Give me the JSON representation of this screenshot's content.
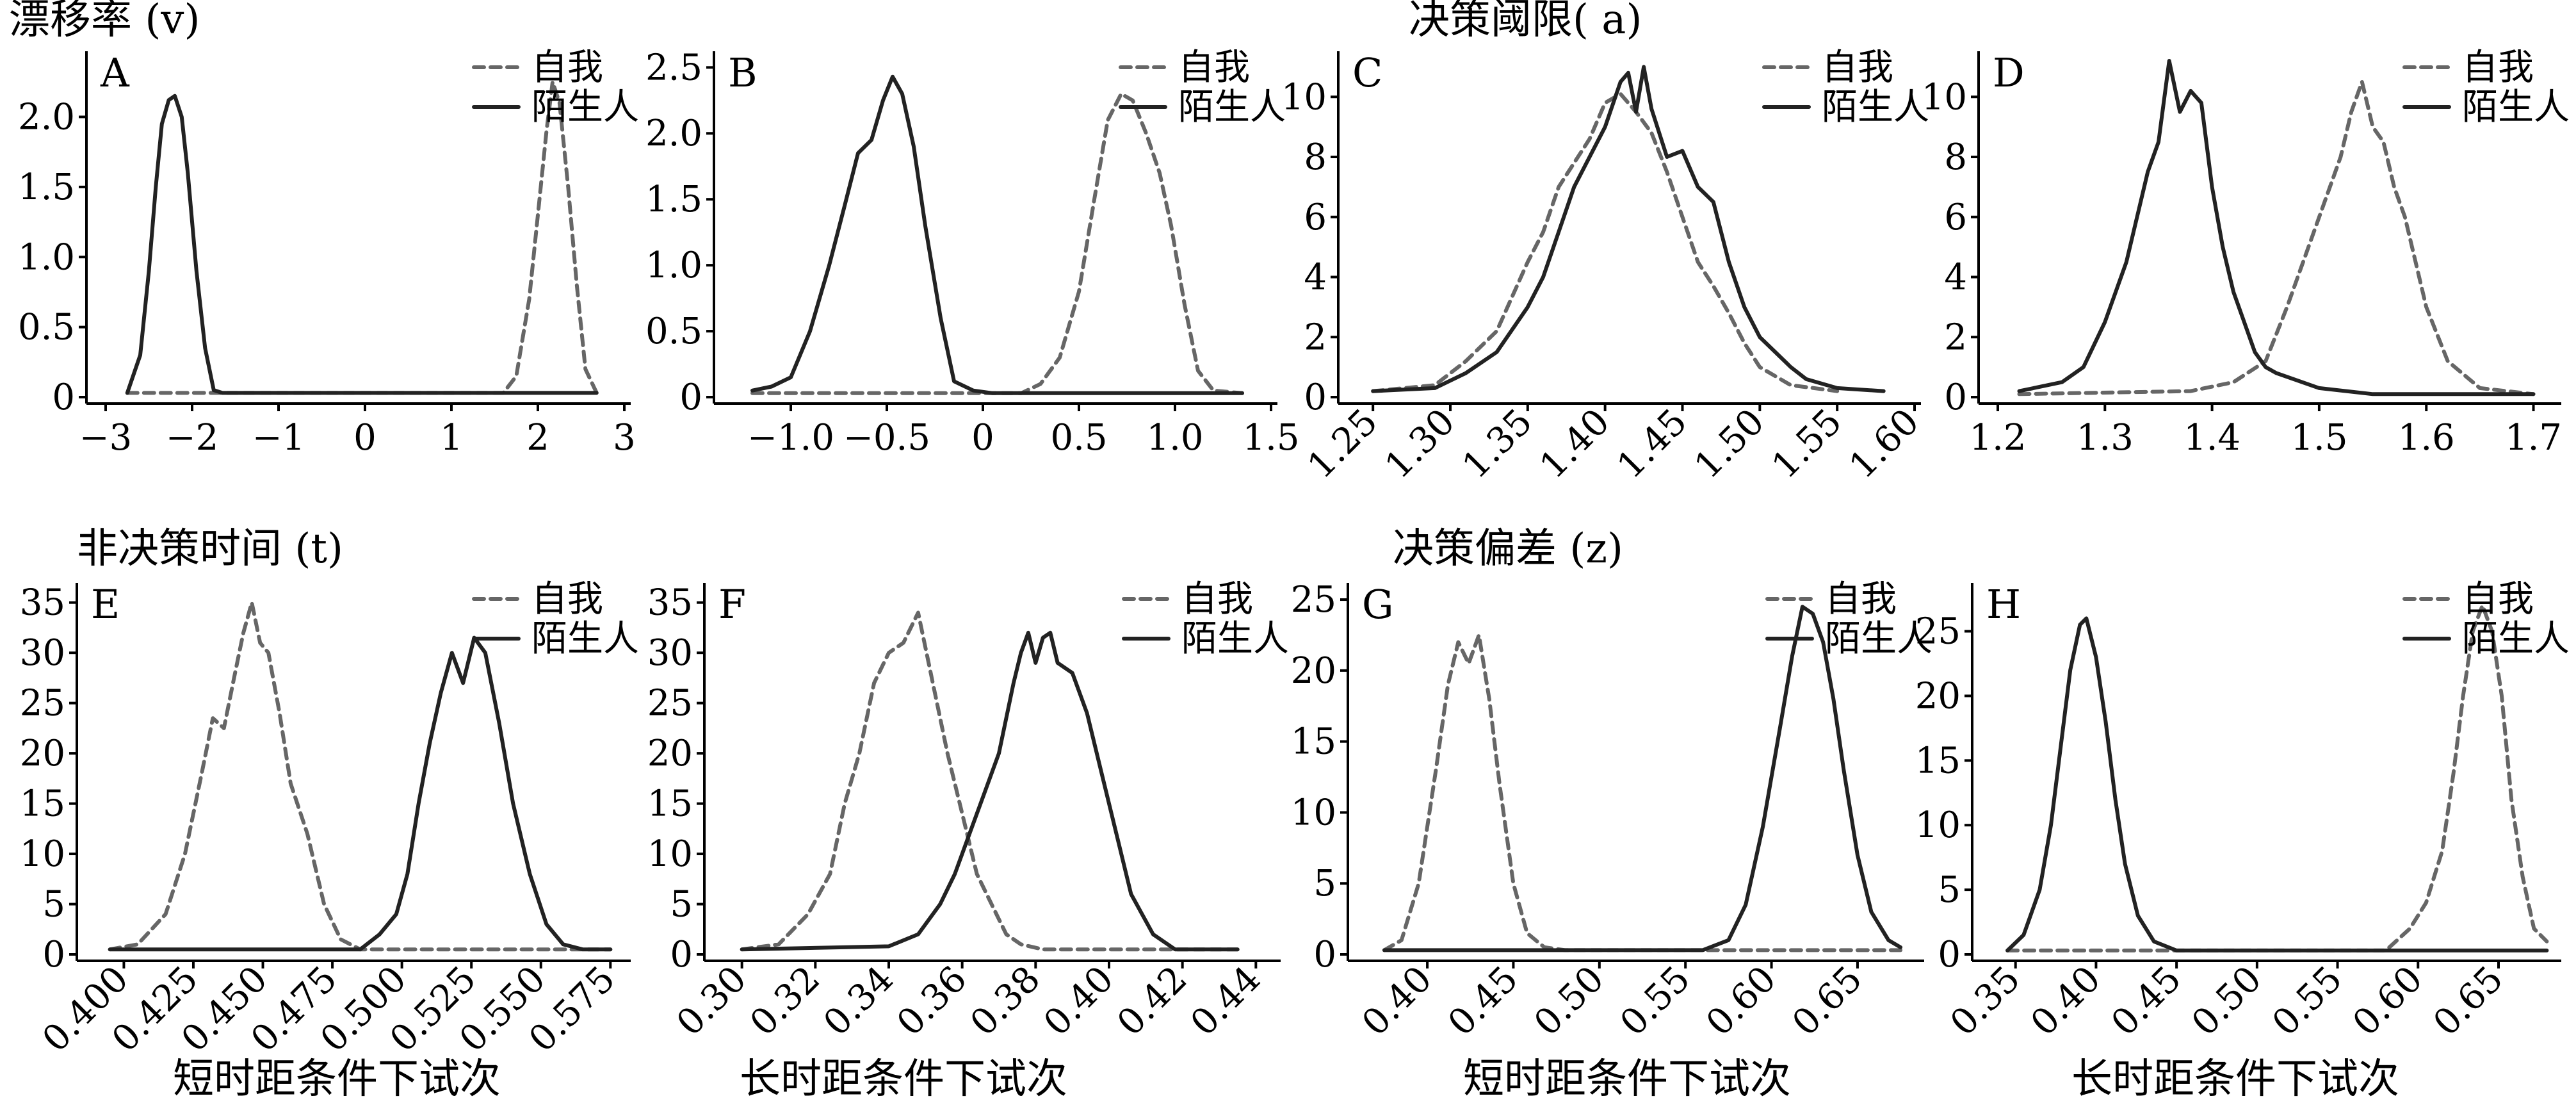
{
  "group_titles": {
    "drift_rate": "漂移率 (v)",
    "threshold": "决策阈限( a)",
    "nondecision": "非决策时间 (t)",
    "bias": "决策偏差 (z)"
  },
  "condition_labels": {
    "short": "短时距条件下试次",
    "long": "长时距条件下试次"
  },
  "legend": {
    "self": "自我",
    "stranger": "陌生人"
  },
  "colors": {
    "self": "#666666",
    "stranger": "#222222"
  },
  "chart_data": [
    {
      "panel": "A",
      "type": "line",
      "xlim": [
        -3,
        3
      ],
      "ylim": [
        0,
        2.4
      ],
      "xticks": [
        -3,
        -2,
        -1,
        0,
        1,
        2,
        3
      ],
      "xtick_labels": [
        "−3",
        "−2",
        "−1",
        "0",
        "1",
        "2",
        "3"
      ],
      "yticks": [
        0,
        0.5,
        1.0,
        1.5,
        2.0
      ],
      "ytick_labels": [
        "0",
        "0.5",
        "1.0",
        "1.5",
        "2.0"
      ],
      "rotate_x": false,
      "series": [
        {
          "name": "自我",
          "style": "dashed",
          "x": [
            -2.75,
            1.6,
            1.75,
            1.9,
            2.0,
            2.1,
            2.17,
            2.25,
            2.35,
            2.45,
            2.55,
            2.68
          ],
          "y": [
            0.03,
            0.03,
            0.15,
            0.7,
            1.3,
            1.9,
            2.25,
            2.1,
            1.5,
            0.8,
            0.2,
            0.03
          ]
        },
        {
          "name": "陌生人",
          "style": "solid",
          "x": [
            -2.75,
            -2.6,
            -2.5,
            -2.42,
            -2.35,
            -2.27,
            -2.2,
            -2.12,
            -2.05,
            -1.95,
            -1.85,
            -1.75,
            -1.65,
            2.68
          ],
          "y": [
            0.03,
            0.3,
            0.9,
            1.5,
            1.95,
            2.12,
            2.15,
            2.0,
            1.6,
            0.9,
            0.35,
            0.05,
            0.03,
            0.03
          ]
        }
      ]
    },
    {
      "panel": "B",
      "type": "line",
      "xlim": [
        -1.3,
        1.5
      ],
      "ylim": [
        0,
        2.55
      ],
      "xticks": [
        -1.0,
        -0.5,
        0,
        0.5,
        1.0,
        1.5
      ],
      "xtick_labels": [
        "−1.0",
        "−0.5",
        "0",
        "0.5",
        "1.0",
        "1.5"
      ],
      "yticks": [
        0,
        0.5,
        1.0,
        1.5,
        2.0,
        2.5
      ],
      "ytick_labels": [
        "0",
        "0.5",
        "1.0",
        "1.5",
        "2.0",
        "2.5"
      ],
      "rotate_x": false,
      "series": [
        {
          "name": "自我",
          "style": "dashed",
          "x": [
            -1.2,
            0.2,
            0.3,
            0.4,
            0.5,
            0.58,
            0.65,
            0.72,
            0.78,
            0.85,
            0.92,
            0.98,
            1.05,
            1.12,
            1.2,
            1.35
          ],
          "y": [
            0.03,
            0.03,
            0.1,
            0.3,
            0.8,
            1.5,
            2.1,
            2.3,
            2.25,
            2.0,
            1.7,
            1.3,
            0.7,
            0.2,
            0.05,
            0.03
          ]
        },
        {
          "name": "陌生人",
          "style": "solid",
          "x": [
            -1.2,
            -1.1,
            -1.0,
            -0.9,
            -0.8,
            -0.72,
            -0.65,
            -0.58,
            -0.52,
            -0.47,
            -0.42,
            -0.36,
            -0.3,
            -0.22,
            -0.15,
            -0.05,
            0.05,
            1.35
          ],
          "y": [
            0.05,
            0.08,
            0.15,
            0.5,
            1.0,
            1.45,
            1.85,
            1.95,
            2.25,
            2.43,
            2.3,
            1.9,
            1.3,
            0.6,
            0.12,
            0.05,
            0.03,
            0.03
          ]
        }
      ]
    },
    {
      "panel": "C",
      "type": "line",
      "xlim": [
        1.24,
        1.6
      ],
      "ylim": [
        0,
        11.2
      ],
      "xticks": [
        1.25,
        1.3,
        1.35,
        1.4,
        1.45,
        1.5,
        1.55,
        1.6
      ],
      "xtick_labels": [
        "1.25",
        "1.30",
        "1.35",
        "1.40",
        "1.45",
        "1.50",
        "1.55",
        "1.60"
      ],
      "yticks": [
        0,
        2,
        4,
        6,
        8,
        10
      ],
      "ytick_labels": [
        "0",
        "2",
        "4",
        "6",
        "8",
        "10"
      ],
      "rotate_x": true,
      "series": [
        {
          "name": "自我",
          "style": "dashed",
          "x": [
            1.25,
            1.29,
            1.31,
            1.33,
            1.35,
            1.36,
            1.37,
            1.38,
            1.39,
            1.4,
            1.41,
            1.42,
            1.43,
            1.44,
            1.45,
            1.46,
            1.47,
            1.48,
            1.49,
            1.5,
            1.52,
            1.55
          ],
          "y": [
            0.2,
            0.4,
            1.2,
            2.2,
            4.5,
            5.5,
            7.0,
            7.8,
            8.6,
            9.8,
            10.1,
            9.5,
            8.8,
            7.5,
            6.0,
            4.5,
            3.7,
            2.8,
            1.8,
            1.0,
            0.4,
            0.2
          ]
        },
        {
          "name": "陌生人",
          "style": "solid",
          "x": [
            1.25,
            1.29,
            1.31,
            1.33,
            1.35,
            1.36,
            1.37,
            1.38,
            1.39,
            1.4,
            1.41,
            1.415,
            1.42,
            1.425,
            1.43,
            1.44,
            1.45,
            1.46,
            1.47,
            1.48,
            1.49,
            1.5,
            1.51,
            1.52,
            1.53,
            1.55,
            1.58
          ],
          "y": [
            0.2,
            0.3,
            0.8,
            1.5,
            3.0,
            4.0,
            5.5,
            7.0,
            8.0,
            9.0,
            10.5,
            10.8,
            9.5,
            11.0,
            9.6,
            8.0,
            8.2,
            7.0,
            6.5,
            4.5,
            3.0,
            2.0,
            1.5,
            1.0,
            0.6,
            0.3,
            0.2
          ]
        }
      ]
    },
    {
      "panel": "D",
      "type": "line",
      "xlim": [
        1.2,
        1.72
      ],
      "ylim": [
        0,
        11.2
      ],
      "xticks": [
        1.2,
        1.3,
        1.4,
        1.5,
        1.6,
        1.7
      ],
      "xtick_labels": [
        "1.2",
        "1.3",
        "1.4",
        "1.5",
        "1.6",
        "1.7"
      ],
      "yticks": [
        0,
        2,
        4,
        6,
        8,
        10
      ],
      "ytick_labels": [
        "0",
        "2",
        "4",
        "6",
        "8",
        "10"
      ],
      "rotate_x": false,
      "series": [
        {
          "name": "自我",
          "style": "dashed",
          "x": [
            1.22,
            1.38,
            1.42,
            1.45,
            1.47,
            1.49,
            1.51,
            1.52,
            1.53,
            1.54,
            1.55,
            1.56,
            1.57,
            1.58,
            1.59,
            1.6,
            1.62,
            1.65,
            1.7
          ],
          "y": [
            0.1,
            0.2,
            0.5,
            1.2,
            3.0,
            5.0,
            7.0,
            8.0,
            9.5,
            10.5,
            9.0,
            8.5,
            7.0,
            6.0,
            4.5,
            3.0,
            1.2,
            0.3,
            0.1
          ]
        },
        {
          "name": "陌生人",
          "style": "solid",
          "x": [
            1.22,
            1.26,
            1.28,
            1.3,
            1.32,
            1.34,
            1.35,
            1.36,
            1.37,
            1.38,
            1.39,
            1.4,
            1.41,
            1.42,
            1.43,
            1.44,
            1.45,
            1.46,
            1.5,
            1.55,
            1.6,
            1.7
          ],
          "y": [
            0.2,
            0.5,
            1.0,
            2.5,
            4.5,
            7.5,
            8.5,
            11.2,
            9.5,
            10.2,
            9.8,
            7.0,
            5.0,
            3.5,
            2.5,
            1.5,
            1.0,
            0.8,
            0.3,
            0.1,
            0.1,
            0.1
          ]
        }
      ]
    },
    {
      "panel": "E",
      "type": "line",
      "xlim": [
        0.39,
        0.58
      ],
      "ylim": [
        0,
        36
      ],
      "xticks": [
        0.4,
        0.425,
        0.45,
        0.475,
        0.5,
        0.525,
        0.55,
        0.575
      ],
      "xtick_labels": [
        "0.400",
        "0.425",
        "0.450",
        "0.475",
        "0.500",
        "0.525",
        "0.550",
        "0.575"
      ],
      "yticks": [
        0,
        5,
        10,
        15,
        20,
        25,
        30,
        35
      ],
      "ytick_labels": [
        "0",
        "5",
        "10",
        "15",
        "20",
        "25",
        "30",
        "35"
      ],
      "rotate_x": true,
      "series": [
        {
          "name": "自我",
          "style": "dashed",
          "x": [
            0.395,
            0.405,
            0.415,
            0.422,
            0.428,
            0.432,
            0.436,
            0.44,
            0.443,
            0.446,
            0.449,
            0.452,
            0.456,
            0.46,
            0.466,
            0.472,
            0.478,
            0.485,
            0.575
          ],
          "y": [
            0.5,
            1.0,
            4.0,
            10.0,
            18.0,
            23.5,
            22.5,
            28.0,
            32.0,
            35.0,
            31.0,
            30.0,
            24.0,
            17.0,
            12.0,
            5.0,
            1.5,
            0.5,
            0.5
          ]
        },
        {
          "name": "陌生人",
          "style": "solid",
          "x": [
            0.395,
            0.485,
            0.492,
            0.498,
            0.502,
            0.506,
            0.51,
            0.514,
            0.518,
            0.522,
            0.526,
            0.53,
            0.535,
            0.54,
            0.546,
            0.552,
            0.558,
            0.565,
            0.575
          ],
          "y": [
            0.5,
            0.5,
            2.0,
            4.0,
            8.0,
            15.0,
            21.0,
            26.0,
            30.0,
            27.0,
            31.5,
            30.0,
            23.0,
            15.0,
            8.0,
            3.0,
            1.0,
            0.5,
            0.5
          ]
        }
      ]
    },
    {
      "panel": "F",
      "type": "line",
      "xlim": [
        0.295,
        0.445
      ],
      "ylim": [
        0,
        36
      ],
      "xticks": [
        0.3,
        0.32,
        0.34,
        0.36,
        0.38,
        0.4,
        0.42,
        0.44
      ],
      "xtick_labels": [
        "0.30",
        "0.32",
        "0.34",
        "0.36",
        "0.38",
        "0.40",
        "0.42",
        "0.44"
      ],
      "yticks": [
        0,
        5,
        10,
        15,
        20,
        25,
        30,
        35
      ],
      "ytick_labels": [
        "0",
        "5",
        "10",
        "15",
        "20",
        "25",
        "30",
        "35"
      ],
      "rotate_x": true,
      "series": [
        {
          "name": "自我",
          "style": "dashed",
          "x": [
            0.3,
            0.31,
            0.318,
            0.324,
            0.328,
            0.332,
            0.336,
            0.34,
            0.344,
            0.348,
            0.352,
            0.356,
            0.36,
            0.364,
            0.368,
            0.372,
            0.376,
            0.382,
            0.435
          ],
          "y": [
            0.5,
            1.0,
            4.0,
            8.0,
            15.0,
            20.0,
            27.0,
            30.0,
            31.0,
            34.0,
            27.0,
            20.0,
            14.0,
            8.0,
            5.0,
            2.0,
            1.0,
            0.5,
            0.5
          ]
        },
        {
          "name": "陌生人",
          "style": "solid",
          "x": [
            0.3,
            0.34,
            0.348,
            0.354,
            0.358,
            0.362,
            0.366,
            0.37,
            0.374,
            0.376,
            0.378,
            0.38,
            0.382,
            0.384,
            0.386,
            0.39,
            0.394,
            0.398,
            0.402,
            0.406,
            0.412,
            0.418,
            0.435
          ],
          "y": [
            0.5,
            0.8,
            2.0,
            5.0,
            8.0,
            12.0,
            16.0,
            20.0,
            27.0,
            30.0,
            32.0,
            29.0,
            31.5,
            32.0,
            29.0,
            28.0,
            24.0,
            18.0,
            12.0,
            6.0,
            2.0,
            0.5,
            0.5
          ]
        }
      ]
    },
    {
      "panel": "G",
      "type": "line",
      "xlim": [
        0.365,
        0.685
      ],
      "ylim": [
        0,
        25.5
      ],
      "xticks": [
        0.4,
        0.45,
        0.5,
        0.55,
        0.6,
        0.65
      ],
      "xtick_labels": [
        "0.40",
        "0.45",
        "0.50",
        "0.55",
        "0.60",
        "0.65"
      ],
      "yticks": [
        0,
        5,
        10,
        15,
        20,
        25
      ],
      "ytick_labels": [
        "0",
        "5",
        "10",
        "15",
        "20",
        "25"
      ],
      "rotate_x": true,
      "series": [
        {
          "name": "自我",
          "style": "dashed",
          "x": [
            0.375,
            0.385,
            0.395,
            0.405,
            0.412,
            0.418,
            0.424,
            0.43,
            0.436,
            0.442,
            0.45,
            0.458,
            0.468,
            0.48,
            0.675
          ],
          "y": [
            0.3,
            1.0,
            5.0,
            13.0,
            19.0,
            22.0,
            20.5,
            22.5,
            18.0,
            12.0,
            5.0,
            1.5,
            0.5,
            0.3,
            0.3
          ]
        },
        {
          "name": "陌生人",
          "style": "solid",
          "x": [
            0.375,
            0.56,
            0.575,
            0.585,
            0.595,
            0.605,
            0.612,
            0.618,
            0.624,
            0.63,
            0.636,
            0.642,
            0.65,
            0.658,
            0.668,
            0.675
          ],
          "y": [
            0.3,
            0.3,
            1.0,
            3.5,
            9.0,
            16.0,
            21.0,
            24.5,
            24.0,
            22.0,
            18.0,
            13.0,
            7.0,
            3.0,
            1.0,
            0.5
          ]
        }
      ]
    },
    {
      "panel": "H",
      "type": "line",
      "xlim": [
        0.335,
        0.685
      ],
      "ylim": [
        0,
        28
      ],
      "xticks": [
        0.35,
        0.4,
        0.45,
        0.5,
        0.55,
        0.6,
        0.65
      ],
      "xtick_labels": [
        "0.35",
        "0.40",
        "0.45",
        "0.50",
        "0.55",
        "0.60",
        "0.65"
      ],
      "yticks": [
        0,
        5,
        10,
        15,
        20,
        25
      ],
      "ytick_labels": [
        "0",
        "5",
        "10",
        "15",
        "20",
        "25"
      ],
      "rotate_x": true,
      "series": [
        {
          "name": "自我",
          "style": "dashed",
          "x": [
            0.345,
            0.58,
            0.595,
            0.605,
            0.615,
            0.622,
            0.628,
            0.634,
            0.64,
            0.646,
            0.652,
            0.658,
            0.665,
            0.672,
            0.68
          ],
          "y": [
            0.3,
            0.3,
            2.0,
            4.0,
            8.0,
            14.0,
            20.0,
            25.0,
            27.0,
            25.0,
            20.0,
            12.0,
            6.0,
            2.0,
            1.0
          ]
        },
        {
          "name": "陌生人",
          "style": "solid",
          "x": [
            0.345,
            0.355,
            0.365,
            0.372,
            0.378,
            0.384,
            0.39,
            0.394,
            0.4,
            0.406,
            0.412,
            0.418,
            0.426,
            0.436,
            0.45,
            0.68
          ],
          "y": [
            0.3,
            1.5,
            5.0,
            10.0,
            16.0,
            22.0,
            25.5,
            26.0,
            23.0,
            18.0,
            12.0,
            7.0,
            3.0,
            1.0,
            0.3,
            0.3
          ]
        }
      ]
    }
  ]
}
